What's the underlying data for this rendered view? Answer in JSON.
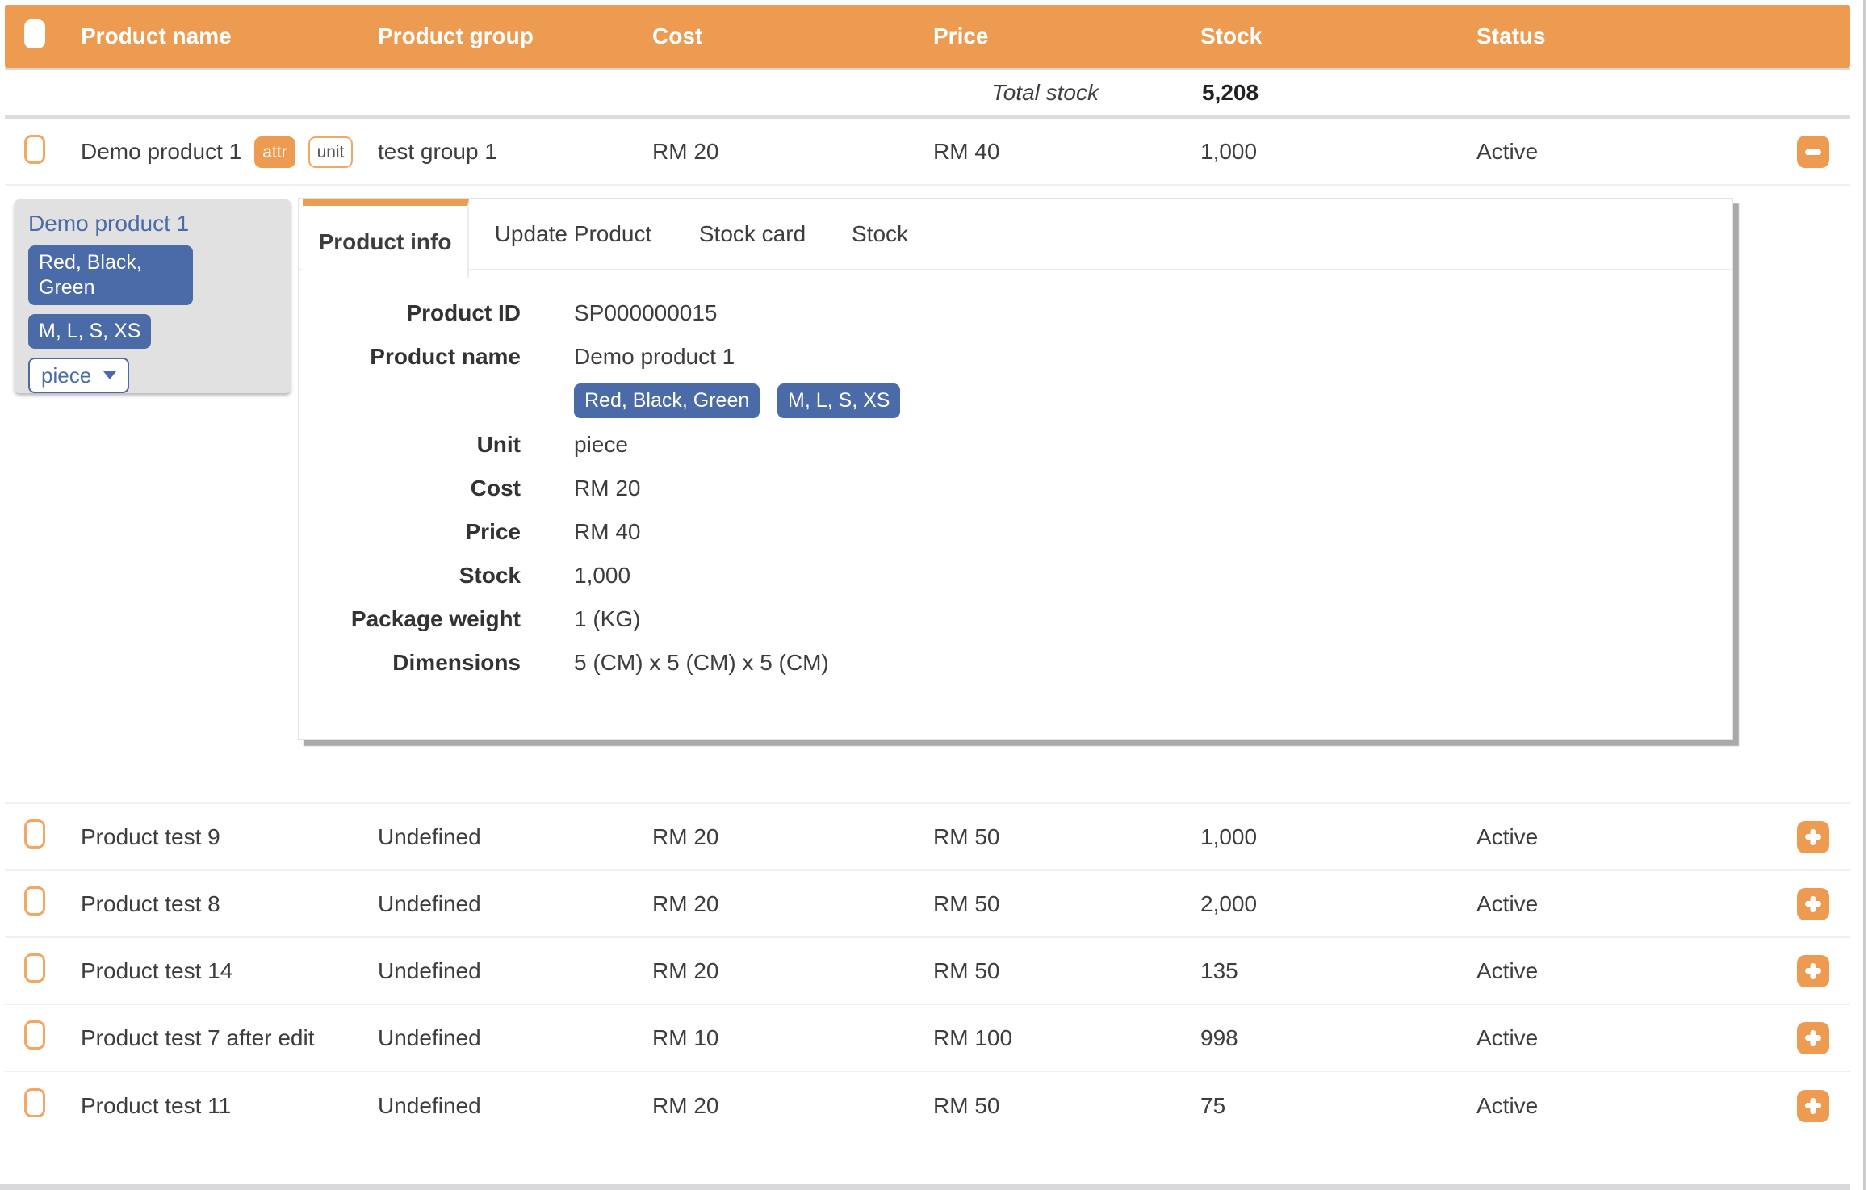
{
  "colors": {
    "accent_orange": "#ED9B50",
    "badge_blue": "#4B6AA8",
    "header_text": "#FFFFFF",
    "body_text": "#3D3D3D",
    "variant_card_bg": "#E1E1E1"
  },
  "table": {
    "columns": [
      "Product name",
      "Product group",
      "Cost",
      "Price",
      "Stock",
      "Status"
    ],
    "total_row": {
      "label": "Total stock",
      "value": "5,208"
    },
    "rows": [
      {
        "name": "Demo product 1",
        "badges": [
          "attr",
          "unit"
        ],
        "group": "test group 1",
        "cost": "RM 20",
        "price": "RM 40",
        "stock": "1,000",
        "status": "Active",
        "action": "collapse",
        "expanded": true
      },
      {
        "name": "Product test 9",
        "group": "Undefined",
        "cost": "RM 20",
        "price": "RM 50",
        "stock": "1,000",
        "status": "Active",
        "action": "expand"
      },
      {
        "name": "Product test 8",
        "group": "Undefined",
        "cost": "RM 20",
        "price": "RM 50",
        "stock": "2,000",
        "status": "Active",
        "action": "expand"
      },
      {
        "name": "Product test 14",
        "group": "Undefined",
        "cost": "RM 20",
        "price": "RM 50",
        "stock": "135",
        "status": "Active",
        "action": "expand"
      },
      {
        "name": "Product test 7 after edit",
        "group": "Undefined",
        "cost": "RM 10",
        "price": "RM 100",
        "stock": "998",
        "status": "Active",
        "action": "expand"
      },
      {
        "name": "Product test 11",
        "group": "Undefined",
        "cost": "RM 20",
        "price": "RM 50",
        "stock": "75",
        "status": "Active",
        "action": "expand"
      }
    ]
  },
  "detail": {
    "variant_card": {
      "title": "Demo product 1",
      "attribute_badges": [
        "Red, Black, Green",
        "M, L, S, XS"
      ],
      "unit_selector": "piece"
    },
    "tabs": [
      {
        "label": "Product info",
        "active": true
      },
      {
        "label": "Update Product",
        "active": false
      },
      {
        "label": "Stock card",
        "active": false
      },
      {
        "label": "Stock",
        "active": false
      }
    ],
    "fields": [
      {
        "label": "Product ID",
        "value": "SP000000015"
      },
      {
        "label": "Product name",
        "value": "Demo product 1",
        "badges": [
          "Red, Black, Green",
          "M, L, S, XS"
        ]
      },
      {
        "label": "Unit",
        "value": "piece"
      },
      {
        "label": "Cost",
        "value": "RM 20"
      },
      {
        "label": "Price",
        "value": "RM 40"
      },
      {
        "label": "Stock",
        "value": "1,000"
      },
      {
        "label": "Package weight",
        "value": "1 (KG)"
      },
      {
        "label": "Dimensions",
        "value": "5 (CM) x 5 (CM) x 5 (CM)"
      }
    ]
  },
  "icons": {
    "select_checkbox": "rounded-rect-checkbox",
    "collapse_button": "minus-icon",
    "expand_button": "plus-icon",
    "unit_selector_caret": "chevron-down-icon"
  }
}
